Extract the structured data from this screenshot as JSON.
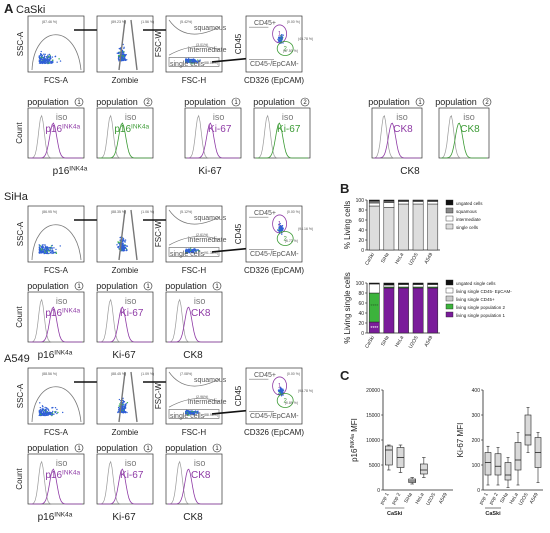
{
  "panels": {
    "A": {
      "letter": "A",
      "rows": [
        {
          "cell_line": "CaSki",
          "gates": [
            {
              "xlabel": "FCS-A",
              "ylabel": "SSC-A",
              "stat": "(87.46 %)"
            },
            {
              "xlabel": "Zombie",
              "ylabel": "",
              "stat": "(89.23 %)",
              "stat2": "(1.56 %)"
            },
            {
              "xlabel": "FSC-H",
              "ylabel": "FSC-W",
              "stat": "(5.42%)",
              "labels": [
                "squamous",
                "intermediate",
                "single cells"
              ],
              "stat2": "(3.01%)",
              "stat3": "(88.06%)"
            },
            {
              "xlabel": "CD326 (EpCAM)",
              "ylabel": "CD45",
              "labels": [
                "CD45+",
                "CD45-/EpCAM-"
              ],
              "stat": "(0.00 %)",
              "stat2": "(45.78 %)",
              "stat3": "(47.50 %)"
            }
          ],
          "histograms": [
            {
              "title": "population",
              "pop": "1",
              "iso": "iso",
              "marker": "p16",
              "sup": "INK4a",
              "color": "#8e3aa5"
            },
            {
              "title": "population",
              "pop": "2",
              "iso": "iso",
              "marker": "p16",
              "sup": "INK4a",
              "color": "#3a9a33"
            },
            {
              "title": "population",
              "pop": "1",
              "iso": "iso",
              "marker": "Ki-67",
              "sup": "",
              "color": "#8e3aa5"
            },
            {
              "title": "population",
              "pop": "2",
              "iso": "iso",
              "marker": "Ki-67",
              "sup": "",
              "color": "#3a9a33"
            },
            {
              "title": "population",
              "pop": "1",
              "iso": "iso",
              "marker": "CK8",
              "sup": "",
              "color": "#8e3aa5"
            },
            {
              "title": "population",
              "pop": "2",
              "iso": "iso",
              "marker": "CK8",
              "sup": "",
              "color": "#3a9a33"
            }
          ],
          "xlabels": [
            {
              "text": "p16",
              "sup": "INK4a"
            },
            {
              "text": "Ki-67",
              "sup": ""
            },
            {
              "text": "CK8",
              "sup": ""
            }
          ]
        },
        {
          "cell_line": "SiHa",
          "gates": [
            {
              "xlabel": "FCS-A",
              "ylabel": "SSC-A",
              "stat": "(86.95 %)"
            },
            {
              "xlabel": "Zombie",
              "ylabel": "",
              "stat": "(88.35 %)",
              "stat2": "(1.06 %)"
            },
            {
              "xlabel": "FSC-H",
              "ylabel": "FSC-W",
              "stat": "(5.12%)",
              "labels": [
                "squamous",
                "intermediate",
                "single cells"
              ],
              "stat2": "(2.61%)",
              "stat3": "(91.38%)"
            },
            {
              "xlabel": "CD326 (EpCAM)",
              "ylabel": "CD45",
              "labels": [
                "CD45+",
                "CD45-/EpCAM-"
              ],
              "stat": "(0.00 %)",
              "stat2": "(94.16 %)",
              "stat3": "(5.72 %)"
            }
          ],
          "histograms": [
            {
              "title": "population",
              "pop": "1",
              "iso": "iso",
              "marker": "p16",
              "sup": "INK4a",
              "color": "#8e3aa5"
            },
            {
              "title": "population",
              "pop": "1",
              "iso": "iso",
              "marker": "Ki-67",
              "sup": "",
              "color": "#8e3aa5"
            },
            {
              "title": "population",
              "pop": "1",
              "iso": "iso",
              "marker": "CK8",
              "sup": "",
              "color": "#8e3aa5"
            }
          ],
          "xlabels": [
            {
              "text": "p16",
              "sup": "INK4a"
            },
            {
              "text": "Ki-67",
              "sup": ""
            },
            {
              "text": "CK8",
              "sup": ""
            }
          ]
        },
        {
          "cell_line": "A549",
          "gates": [
            {
              "xlabel": "FCS-A",
              "ylabel": "SSC-A",
              "stat": "(88.56 %)"
            },
            {
              "xlabel": "Zombie",
              "ylabel": "",
              "stat": "(88.45 %)",
              "stat2": "(1.09 %)"
            },
            {
              "xlabel": "FSC-H",
              "ylabel": "FSC-W",
              "stat": "(7.08%)",
              "labels": [
                "squamous",
                "intermediate",
                "single cells"
              ],
              "stat2": "(2.96%)",
              "stat3": "(88.96%)"
            },
            {
              "xlabel": "CD326 (EpCAM)",
              "ylabel": "CD45",
              "labels": [
                "CD45+",
                "CD45-/EpCAM-"
              ],
              "stat": "(0.00 %)",
              "stat2": "(98.78 %)",
              "stat3": "(0.89 %)"
            }
          ],
          "histograms": [
            {
              "title": "population",
              "pop": "1",
              "iso": "iso",
              "marker": "p16",
              "sup": "INK4a",
              "color": "#8e3aa5"
            },
            {
              "title": "population",
              "pop": "1",
              "iso": "iso",
              "marker": "Ki-67",
              "sup": "",
              "color": "#8e3aa5"
            },
            {
              "title": "population",
              "pop": "1",
              "iso": "iso",
              "marker": "CK8",
              "sup": "",
              "color": "#8e3aa5"
            }
          ],
          "xlabels": [
            {
              "text": "p16",
              "sup": "INK4a"
            },
            {
              "text": "Ki-67",
              "sup": ""
            },
            {
              "text": "CK8",
              "sup": ""
            }
          ]
        }
      ],
      "hist_ylabel": "Count",
      "colors": {
        "scatter": "#2f5fd6",
        "gate": "#777777",
        "arrow": "#111111",
        "iso": "#999999"
      }
    },
    "B": {
      "letter": "B"
    },
    "C": {
      "letter": "C"
    }
  },
  "chart_data": [
    {
      "type": "bar",
      "subtype": "stacked-100",
      "ylabel": "% Living cells",
      "ylim": [
        0,
        100
      ],
      "yticks": [
        0,
        20,
        40,
        60,
        80,
        100
      ],
      "categories": [
        "CaSki",
        "SiHa",
        "HeLa",
        "U2OS",
        "A549"
      ],
      "legend_position": "right",
      "series": [
        {
          "name": "single cells",
          "color": "#dddddd",
          "values": [
            88,
            85,
            92,
            92,
            92
          ]
        },
        {
          "name": "intermediate",
          "color": "#ffffff",
          "values": [
            6,
            10,
            5,
            5,
            5
          ]
        },
        {
          "name": "squamous",
          "color": "#888888",
          "values": [
            4,
            3,
            2,
            2,
            2
          ]
        },
        {
          "name": "ungated cells",
          "color": "#111111",
          "values": [
            2,
            2,
            1,
            1,
            1
          ]
        }
      ]
    },
    {
      "type": "bar",
      "subtype": "stacked-100",
      "ylabel": "% Living single cells",
      "ylim": [
        0,
        100
      ],
      "yticks": [
        0,
        20,
        40,
        60,
        80,
        100
      ],
      "categories": [
        "CaSki",
        "SiHa",
        "HeLa",
        "U2OS",
        "A549"
      ],
      "legend_position": "right",
      "annotations": [
        "**",
        "****",
        "****"
      ],
      "series": [
        {
          "name": "living single population 1",
          "color": "#7a1c9a",
          "values": [
            22,
            90,
            90,
            90,
            90
          ]
        },
        {
          "name": "living single population 2",
          "color": "#3cb33c",
          "values": [
            58,
            2,
            2,
            2,
            2
          ]
        },
        {
          "name": "living single CD45+",
          "color": "#cccccc",
          "values": [
            0,
            0,
            0,
            0,
            0
          ]
        },
        {
          "name": "living single CD45- EpCAM-",
          "color": "#ffffff",
          "values": [
            18,
            4,
            5,
            5,
            5
          ]
        },
        {
          "name": "ungated single cells",
          "color": "#111111",
          "values": [
            2,
            4,
            3,
            3,
            3
          ]
        }
      ]
    },
    {
      "type": "box",
      "ylabel": "p16INK4a MFI",
      "ylabel_main": "p16",
      "ylabel_sup": "INK4a",
      "ylabel_rest": " MFI",
      "ylim": [
        0,
        20000
      ],
      "yticks": [
        0,
        5000,
        10000,
        15000,
        20000
      ],
      "categories": [
        "pop 1",
        "pop 2",
        "SiHa",
        "HeLa",
        "U2OS",
        "A549"
      ],
      "group_label": "CaSki",
      "boxes": [
        {
          "min": 4000,
          "q1": 5000,
          "median": 8000,
          "q3": 8800,
          "max": 9000
        },
        {
          "min": 3500,
          "q1": 4500,
          "median": 6500,
          "q3": 8500,
          "max": 9000
        },
        {
          "min": 1200,
          "q1": 1500,
          "median": 1800,
          "q3": 2200,
          "max": 2500
        },
        {
          "min": 2500,
          "q1": 3200,
          "median": 4000,
          "q3": 5200,
          "max": 6500
        },
        {
          "min": 0,
          "q1": 0,
          "median": 0,
          "q3": 0,
          "max": 0
        },
        {
          "min": 0,
          "q1": 0,
          "median": 0,
          "q3": 0,
          "max": 0
        }
      ]
    },
    {
      "type": "box",
      "ylabel": "Ki-67 MFI",
      "ylim": [
        0,
        400
      ],
      "yticks": [
        0,
        100,
        200,
        300,
        400
      ],
      "categories": [
        "pop 1",
        "pop 2",
        "SiHa",
        "HeLa",
        "U2OS",
        "A549"
      ],
      "group_label": "CaSki",
      "boxes": [
        {
          "min": 20,
          "q1": 60,
          "median": 110,
          "q3": 150,
          "max": 175
        },
        {
          "min": 20,
          "q1": 60,
          "median": 95,
          "q3": 145,
          "max": 170
        },
        {
          "min": 10,
          "q1": 40,
          "median": 60,
          "q3": 110,
          "max": 130
        },
        {
          "min": 20,
          "q1": 80,
          "median": 120,
          "q3": 190,
          "max": 230
        },
        {
          "min": 150,
          "q1": 180,
          "median": 220,
          "q3": 300,
          "max": 330
        },
        {
          "min": 30,
          "q1": 90,
          "median": 150,
          "q3": 210,
          "max": 230
        }
      ]
    }
  ]
}
